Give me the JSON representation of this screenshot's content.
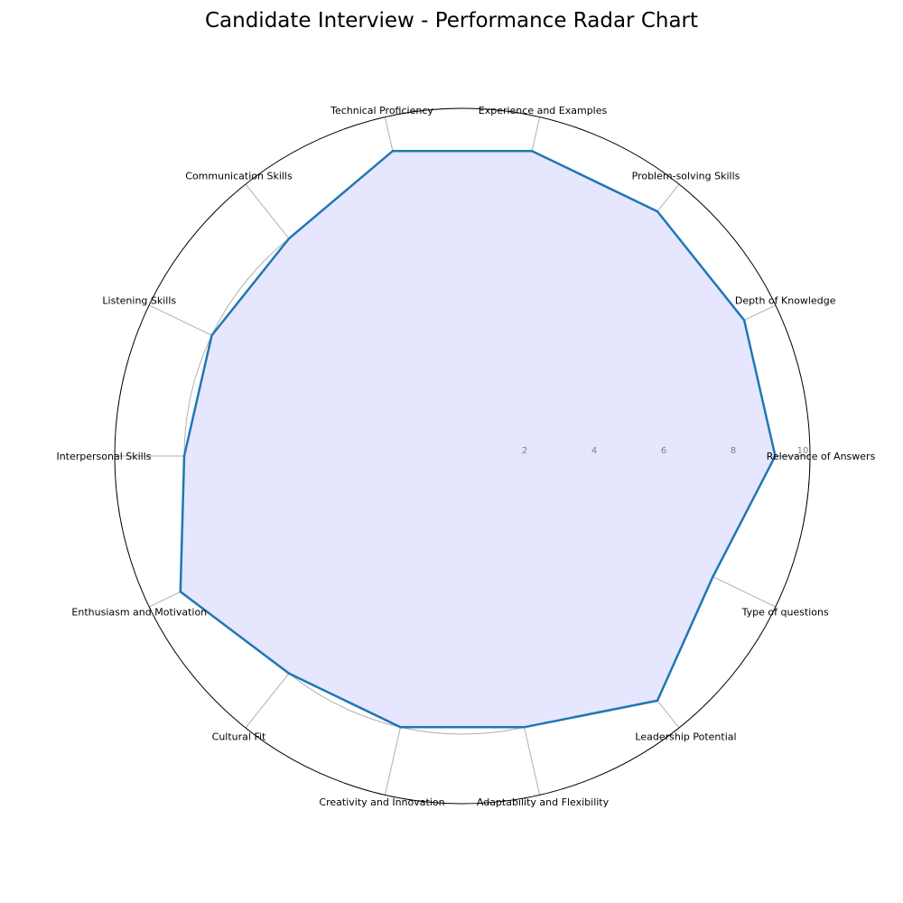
{
  "chart_data": {
    "type": "radar",
    "title": "Candidate Interview - Performance Radar Chart",
    "categories": [
      "Relevance of Answers",
      "Depth of Knowledge",
      "Problem-solving Skills",
      "Experience and Examples",
      "Technical Proficiency",
      "Communication Skills",
      "Listening Skills",
      "Interpersonal Skills",
      "Enthusiasm and Motivation",
      "Cultural Fit",
      "Creativity and Innovation",
      "Adaptability and Flexibility",
      "Leadership Potential",
      "Type of questions"
    ],
    "series": [
      {
        "values": [
          9,
          9,
          9,
          9,
          9,
          8,
          8,
          8,
          9,
          8,
          8,
          8,
          9,
          8
        ]
      }
    ],
    "r_ticks": [
      "2",
      "4",
      "6",
      "8",
      "10"
    ],
    "rlim": [
      0,
      10
    ],
    "grid": true,
    "colors": {
      "line": "#1f77b4",
      "fill": "#e6e6ff",
      "grid": "#b0b0b0",
      "outline": "#000000",
      "tick": "#808080"
    }
  }
}
